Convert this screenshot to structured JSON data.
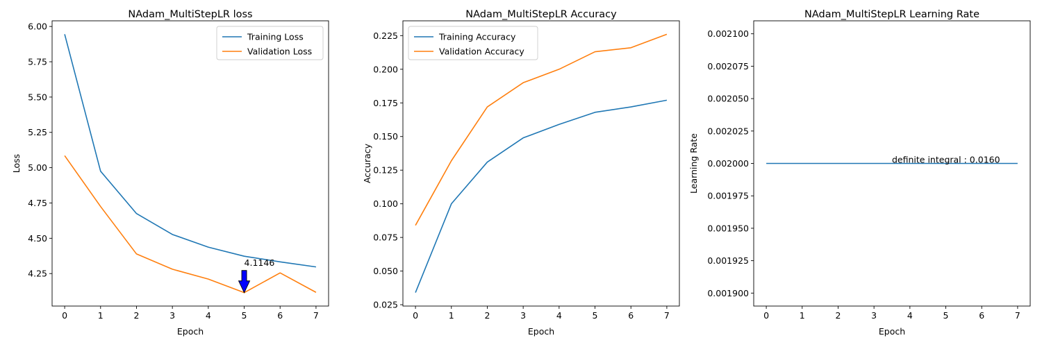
{
  "colors": {
    "series_1": "#1f77b4",
    "series_2": "#ff7f0e",
    "arrow_fill": "#0000ff"
  },
  "chart_data": [
    {
      "type": "line",
      "title": "NAdam_MultiStepLR loss",
      "xlabel": "Epoch",
      "ylabel": "Loss",
      "x": [
        0,
        1,
        2,
        3,
        4,
        5,
        6,
        7
      ],
      "xticks": [
        "0",
        "1",
        "2",
        "3",
        "4",
        "5",
        "6",
        "7"
      ],
      "yticks": [
        "4.25",
        "4.50",
        "4.75",
        "5.00",
        "5.25",
        "5.50",
        "5.75",
        "6.00"
      ],
      "ytick_values": [
        4.25,
        4.5,
        4.75,
        5.0,
        5.25,
        5.5,
        5.75,
        6.0
      ],
      "xlim": [
        -0.35,
        7.35
      ],
      "ylim": [
        4.02,
        6.04
      ],
      "legend": "top-right",
      "grid": false,
      "series": [
        {
          "name": "Training Loss",
          "values": [
            5.945,
            4.975,
            4.675,
            4.527,
            4.437,
            4.373,
            4.333,
            4.297
          ]
        },
        {
          "name": "Validation Loss",
          "values": [
            5.085,
            4.725,
            4.389,
            4.281,
            4.211,
            4.115,
            4.255,
            4.117
          ]
        }
      ],
      "annotations": [
        {
          "text": "4.1146",
          "x": 5,
          "y": 4.1146,
          "arrow": true
        }
      ]
    },
    {
      "type": "line",
      "title": "NAdam_MultiStepLR Accuracy",
      "xlabel": "Epoch",
      "ylabel": "Accuracy",
      "x": [
        0,
        1,
        2,
        3,
        4,
        5,
        6,
        7
      ],
      "xticks": [
        "0",
        "1",
        "2",
        "3",
        "4",
        "5",
        "6",
        "7"
      ],
      "yticks": [
        "0.025",
        "0.050",
        "0.075",
        "0.100",
        "0.125",
        "0.150",
        "0.175",
        "0.200",
        "0.225"
      ],
      "ytick_values": [
        0.025,
        0.05,
        0.075,
        0.1,
        0.125,
        0.15,
        0.175,
        0.2,
        0.225
      ],
      "xlim": [
        -0.35,
        7.35
      ],
      "ylim": [
        0.024,
        0.236
      ],
      "legend": "top-left",
      "grid": false,
      "series": [
        {
          "name": "Training Accuracy",
          "values": [
            0.034,
            0.1,
            0.131,
            0.149,
            0.159,
            0.168,
            0.172,
            0.177
          ]
        },
        {
          "name": "Validation Accuracy",
          "values": [
            0.084,
            0.132,
            0.172,
            0.19,
            0.2,
            0.213,
            0.216,
            0.226
          ]
        }
      ]
    },
    {
      "type": "line",
      "title": "NAdam_MultiStepLR Learning Rate",
      "xlabel": "Epoch",
      "ylabel": "Learning Rate",
      "x": [
        0,
        1,
        2,
        3,
        4,
        5,
        6,
        7
      ],
      "xticks": [
        "0",
        "1",
        "2",
        "3",
        "4",
        "5",
        "6",
        "7"
      ],
      "yticks": [
        "0.001900",
        "0.001925",
        "0.001950",
        "0.001975",
        "0.002000",
        "0.002025",
        "0.002050",
        "0.002075",
        "0.002100"
      ],
      "ytick_values": [
        0.0019,
        0.001925,
        0.00195,
        0.001975,
        0.002,
        0.002025,
        0.00205,
        0.002075,
        0.0021
      ],
      "xlim": [
        -0.35,
        7.35
      ],
      "ylim": [
        0.00189,
        0.00211
      ],
      "legend": "none",
      "grid": false,
      "series": [
        {
          "values": [
            0.002,
            0.002,
            0.002,
            0.002,
            0.002,
            0.002,
            0.002,
            0.002
          ]
        }
      ],
      "annotations": [
        {
          "text": "definite integral : 0.0160",
          "x": 3.5,
          "y": 0.002,
          "arrow": false
        }
      ]
    }
  ]
}
